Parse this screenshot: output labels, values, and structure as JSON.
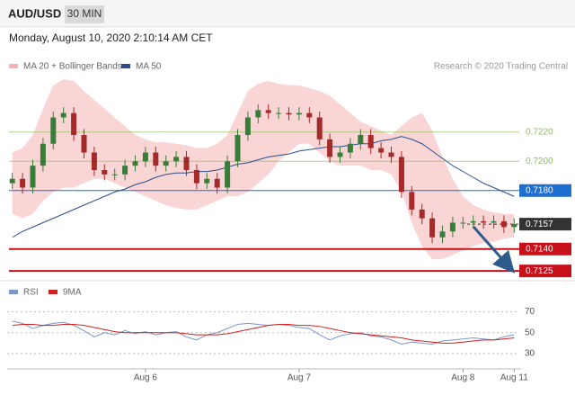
{
  "header": {
    "symbol": "AUD/USD",
    "timeframe": "30 MIN",
    "timestamp": "Monday, August 10, 2020 2:10:14 AM CET"
  },
  "chart_data": [
    {
      "type": "candlestick",
      "annotation": "Research © 2020 Trading Central",
      "categories": [
        null,
        null,
        null,
        null,
        null,
        null,
        null,
        null,
        null,
        null,
        null,
        null,
        null,
        "Aug 6",
        null,
        null,
        null,
        null,
        null,
        null,
        null,
        null,
        null,
        null,
        null,
        null,
        null,
        null,
        "Aug 7",
        null,
        null,
        null,
        null,
        null,
        null,
        null,
        null,
        null,
        null,
        null,
        null,
        null,
        null,
        null,
        "Aug 8",
        null,
        null,
        null,
        null,
        "Aug 11"
      ],
      "up_color": "#3a7d3a",
      "down_color": "#a52a2a",
      "open": [
        0.7185,
        0.7188,
        0.7182,
        0.7197,
        0.7212,
        0.723,
        0.7233,
        0.7218,
        0.7206,
        0.7194,
        0.7191,
        0.7191,
        0.7197,
        0.72,
        0.7206,
        0.7197,
        0.72,
        0.7203,
        0.7194,
        0.7185,
        0.7188,
        0.7182,
        0.72,
        0.7218,
        0.723,
        0.7235,
        0.7233,
        0.7233,
        0.7232,
        0.7233,
        0.723,
        0.7215,
        0.7203,
        0.7206,
        0.7212,
        0.7218,
        0.7209,
        0.7206,
        0.7203,
        0.7179,
        0.7167,
        0.7161,
        0.7148,
        0.7152,
        0.7158,
        0.7158,
        0.7159,
        0.7158,
        0.7159,
        0.7155
      ],
      "high": [
        0.7192,
        0.7192,
        0.7201,
        0.7216,
        0.7234,
        0.7237,
        0.7237,
        0.7222,
        0.721,
        0.7198,
        0.7195,
        0.7201,
        0.7204,
        0.721,
        0.721,
        0.7204,
        0.7207,
        0.7207,
        0.7198,
        0.7192,
        0.7192,
        0.7204,
        0.7222,
        0.7234,
        0.7239,
        0.7239,
        0.7237,
        0.7237,
        0.7237,
        0.7237,
        0.7234,
        0.7219,
        0.721,
        0.7216,
        0.7222,
        0.7222,
        0.7213,
        0.721,
        0.7207,
        0.7183,
        0.7171,
        0.7165,
        0.7156,
        0.7162,
        0.7162,
        0.7163,
        0.7163,
        0.7163,
        0.7163,
        0.7161
      ],
      "low": [
        0.7181,
        0.7178,
        0.7178,
        0.7193,
        0.7208,
        0.7226,
        0.7214,
        0.7202,
        0.719,
        0.7187,
        0.7187,
        0.7187,
        0.7193,
        0.7196,
        0.7193,
        0.7193,
        0.7196,
        0.719,
        0.7181,
        0.7181,
        0.7178,
        0.7178,
        0.7196,
        0.7214,
        0.7226,
        0.7229,
        0.7229,
        0.7228,
        0.7228,
        0.7226,
        0.7211,
        0.7199,
        0.7199,
        0.7202,
        0.7208,
        0.7205,
        0.7202,
        0.7199,
        0.7175,
        0.7163,
        0.7157,
        0.7144,
        0.7144,
        0.7148,
        0.7154,
        0.7154,
        0.7154,
        0.7154,
        0.7151,
        0.7151
      ],
      "close": [
        0.7188,
        0.7182,
        0.7197,
        0.7212,
        0.723,
        0.7233,
        0.7218,
        0.7206,
        0.7194,
        0.7191,
        0.7191,
        0.7197,
        0.72,
        0.7206,
        0.7197,
        0.72,
        0.7203,
        0.7194,
        0.7185,
        0.7188,
        0.7182,
        0.72,
        0.7218,
        0.723,
        0.7235,
        0.7233,
        0.7233,
        0.7232,
        0.7233,
        0.723,
        0.7215,
        0.7203,
        0.7206,
        0.7212,
        0.7218,
        0.7209,
        0.7206,
        0.7203,
        0.7179,
        0.7167,
        0.7161,
        0.7148,
        0.7152,
        0.7158,
        0.7158,
        0.7159,
        0.7158,
        0.7159,
        0.7155,
        0.7157
      ],
      "bands": {
        "name": "MA 20 + Bollinger Bands",
        "color": "#f6b3b3",
        "upper": [
          0.7206,
          0.7209,
          0.7218,
          0.7236,
          0.7252,
          0.7256,
          0.7255,
          0.7248,
          0.7242,
          0.7236,
          0.723,
          0.7224,
          0.7218,
          0.7215,
          0.7213,
          0.7213,
          0.7212,
          0.7211,
          0.7209,
          0.7209,
          0.7212,
          0.7218,
          0.7233,
          0.7248,
          0.7253,
          0.7255,
          0.7253,
          0.7252,
          0.7252,
          0.725,
          0.7248,
          0.7245,
          0.7239,
          0.7233,
          0.7227,
          0.7224,
          0.7221,
          0.7218,
          0.7224,
          0.723,
          0.7233,
          0.7221,
          0.7203,
          0.7188,
          0.7176,
          0.717,
          0.7167,
          0.7165,
          0.7164,
          0.7164
        ],
        "lower": [
          0.7164,
          0.7161,
          0.7164,
          0.7173,
          0.7179,
          0.7182,
          0.7182,
          0.7185,
          0.7188,
          0.7188,
          0.7185,
          0.7182,
          0.7179,
          0.7176,
          0.7173,
          0.717,
          0.7168,
          0.7167,
          0.7167,
          0.717,
          0.7173,
          0.7176,
          0.7176,
          0.7179,
          0.7185,
          0.7191,
          0.72,
          0.7206,
          0.7212,
          0.7212,
          0.7206,
          0.72,
          0.7197,
          0.7197,
          0.7197,
          0.7194,
          0.7194,
          0.7191,
          0.7179,
          0.7158,
          0.7142,
          0.7133,
          0.7133,
          0.7136,
          0.7139,
          0.7142,
          0.7144,
          0.7145,
          0.7147,
          0.7148
        ]
      },
      "series": [
        {
          "name": "MA 50",
          "color": "#2b4f8c",
          "values": [
            0.7148,
            0.7152,
            0.7155,
            0.7158,
            0.7161,
            0.7164,
            0.7167,
            0.717,
            0.7173,
            0.7176,
            0.7179,
            0.7181,
            0.7184,
            0.7186,
            0.7189,
            0.7191,
            0.7192,
            0.7192,
            0.7193,
            0.7193,
            0.7194,
            0.7196,
            0.7198,
            0.7199,
            0.7201,
            0.7203,
            0.7204,
            0.7205,
            0.7207,
            0.7208,
            0.7209,
            0.721,
            0.721,
            0.7211,
            0.7212,
            0.7212,
            0.7214,
            0.7215,
            0.7217,
            0.7215,
            0.7212,
            0.7207,
            0.7202,
            0.7197,
            0.7193,
            0.7189,
            0.7185,
            0.7182,
            0.7179,
            0.7176
          ]
        }
      ],
      "levels": [
        {
          "value": 0.722,
          "label": "0.7220",
          "color": "#8fbf5a",
          "style": "text"
        },
        {
          "value": 0.72,
          "label": "0.7200",
          "color": "#8fbf5a",
          "style": "text"
        },
        {
          "value": 0.718,
          "label": "0.7180",
          "color": "#1f6fd1",
          "style": "box"
        },
        {
          "value": 0.7157,
          "label": "0.7157",
          "color": "#333333",
          "style": "box",
          "dash": true
        },
        {
          "value": 0.714,
          "label": "0.7140",
          "color": "#c8101a",
          "style": "box"
        },
        {
          "value": 0.7125,
          "label": "0.7125",
          "color": "#c8101a",
          "style": "box"
        }
      ],
      "ylim": [
        0.7122,
        0.7258
      ]
    },
    {
      "type": "line",
      "series": [
        {
          "name": "RSI",
          "color": "#7b97c9",
          "values": [
            61,
            59,
            54,
            57,
            59,
            60,
            57,
            52,
            46,
            50,
            48,
            52,
            49,
            51,
            48,
            50,
            51,
            46,
            43,
            48,
            50,
            54,
            58,
            59,
            58,
            57,
            58,
            57,
            55,
            54,
            48,
            43,
            47,
            49,
            50,
            47,
            46,
            43,
            39,
            41,
            40,
            39,
            42,
            43,
            44,
            45,
            44,
            43,
            46,
            48
          ]
        },
        {
          "name": "9MA",
          "color": "#cc2222",
          "values": [
            57,
            58,
            58,
            57,
            57,
            58,
            58,
            57,
            55,
            53,
            51,
            50,
            50,
            50,
            50,
            50,
            50,
            49,
            48,
            48,
            48,
            49,
            51,
            53,
            55,
            57,
            58,
            58,
            57,
            57,
            56,
            54,
            52,
            50,
            49,
            48,
            47,
            46,
            45,
            43,
            42,
            41,
            40,
            40,
            41,
            42,
            43,
            43,
            44,
            45
          ]
        }
      ],
      "ylim": [
        17,
        80
      ],
      "yticks": [
        30,
        50,
        70
      ],
      "grid": true
    }
  ]
}
